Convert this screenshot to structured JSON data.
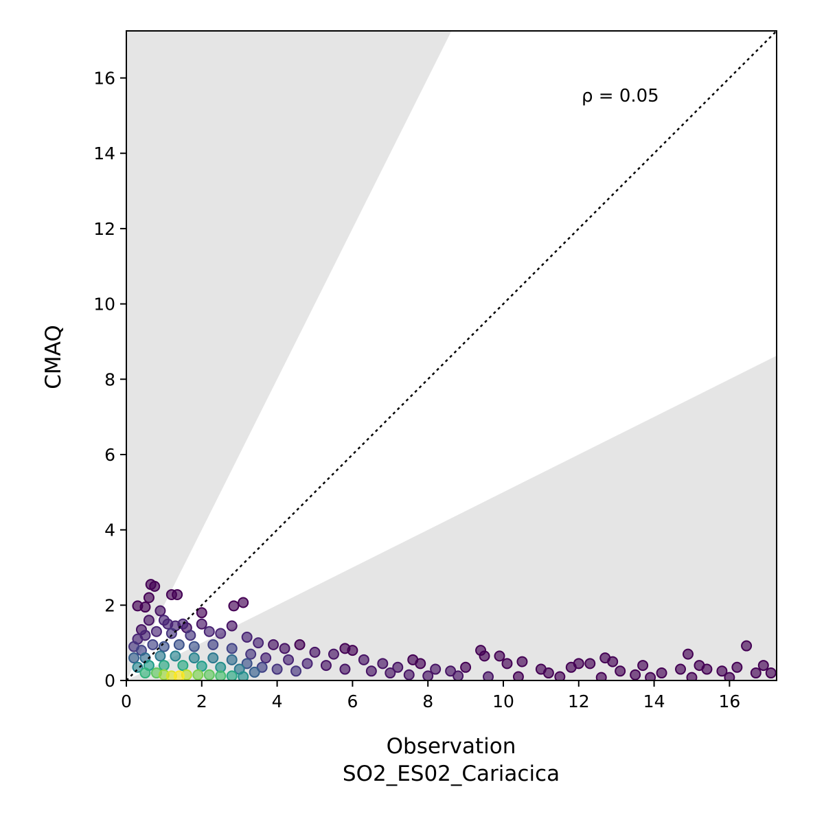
{
  "chart_data": {
    "type": "scatter",
    "xlabel": "Observation",
    "xlabel_sub": "SO2_ES02_Cariacica",
    "ylabel": "CMAQ",
    "xlim": [
      0,
      17.25
    ],
    "ylim": [
      0,
      17.25
    ],
    "xticks": [
      0,
      2,
      4,
      6,
      8,
      10,
      12,
      14,
      16
    ],
    "yticks": [
      0,
      2,
      4,
      6,
      8,
      10,
      12,
      14,
      16
    ],
    "annotation": "ρ = 0.05",
    "reference_line": "1:1",
    "shaded_band": "outside factor-of-2 of 1:1",
    "grid": false,
    "legend": "none",
    "colormap": [
      "#440154",
      "#482878",
      "#3e4989",
      "#31688e",
      "#26828e",
      "#1f9e89",
      "#35b779",
      "#6ece58",
      "#b5de2b",
      "#fde725"
    ],
    "points": [
      {
        "x": 0.65,
        "y": 2.55,
        "d": 0.0
      },
      {
        "x": 0.75,
        "y": 2.5,
        "d": 0.0
      },
      {
        "x": 1.2,
        "y": 2.28,
        "d": 0.0
      },
      {
        "x": 1.35,
        "y": 2.28,
        "d": 0.0
      },
      {
        "x": 0.3,
        "y": 1.98,
        "d": 0.0
      },
      {
        "x": 0.5,
        "y": 1.95,
        "d": 0.0
      },
      {
        "x": 0.6,
        "y": 2.2,
        "d": 0.0
      },
      {
        "x": 0.9,
        "y": 1.85,
        "d": 0.05
      },
      {
        "x": 1.0,
        "y": 1.6,
        "d": 0.1
      },
      {
        "x": 1.1,
        "y": 1.5,
        "d": 0.1
      },
      {
        "x": 1.3,
        "y": 1.45,
        "d": 0.1
      },
      {
        "x": 1.5,
        "y": 1.5,
        "d": 0.1
      },
      {
        "x": 1.6,
        "y": 1.4,
        "d": 0.05
      },
      {
        "x": 2.0,
        "y": 1.8,
        "d": 0.0
      },
      {
        "x": 2.0,
        "y": 1.5,
        "d": 0.05
      },
      {
        "x": 2.85,
        "y": 1.98,
        "d": 0.0
      },
      {
        "x": 3.1,
        "y": 2.07,
        "d": 0.0
      },
      {
        "x": 2.8,
        "y": 1.45,
        "d": 0.05
      },
      {
        "x": 0.4,
        "y": 1.35,
        "d": 0.05
      },
      {
        "x": 0.6,
        "y": 1.6,
        "d": 0.05
      },
      {
        "x": 0.3,
        "y": 1.1,
        "d": 0.1
      },
      {
        "x": 0.5,
        "y": 1.2,
        "d": 0.1
      },
      {
        "x": 0.8,
        "y": 1.3,
        "d": 0.1
      },
      {
        "x": 1.2,
        "y": 1.25,
        "d": 0.15
      },
      {
        "x": 1.7,
        "y": 1.2,
        "d": 0.15
      },
      {
        "x": 2.2,
        "y": 1.3,
        "d": 0.1
      },
      {
        "x": 2.5,
        "y": 1.25,
        "d": 0.1
      },
      {
        "x": 3.2,
        "y": 1.15,
        "d": 0.1
      },
      {
        "x": 3.5,
        "y": 1.0,
        "d": 0.1
      },
      {
        "x": 3.9,
        "y": 0.95,
        "d": 0.05
      },
      {
        "x": 4.2,
        "y": 0.85,
        "d": 0.05
      },
      {
        "x": 4.6,
        "y": 0.95,
        "d": 0.0
      },
      {
        "x": 5.0,
        "y": 0.75,
        "d": 0.05
      },
      {
        "x": 5.5,
        "y": 0.7,
        "d": 0.05
      },
      {
        "x": 5.8,
        "y": 0.85,
        "d": 0.0
      },
      {
        "x": 6.0,
        "y": 0.8,
        "d": 0.0
      },
      {
        "x": 6.3,
        "y": 0.55,
        "d": 0.05
      },
      {
        "x": 6.8,
        "y": 0.45,
        "d": 0.05
      },
      {
        "x": 7.2,
        "y": 0.35,
        "d": 0.05
      },
      {
        "x": 7.6,
        "y": 0.55,
        "d": 0.0
      },
      {
        "x": 7.8,
        "y": 0.45,
        "d": 0.0
      },
      {
        "x": 8.2,
        "y": 0.3,
        "d": 0.05
      },
      {
        "x": 8.6,
        "y": 0.25,
        "d": 0.05
      },
      {
        "x": 9.0,
        "y": 0.35,
        "d": 0.0
      },
      {
        "x": 9.4,
        "y": 0.8,
        "d": 0.0
      },
      {
        "x": 9.5,
        "y": 0.65,
        "d": 0.0
      },
      {
        "x": 9.9,
        "y": 0.65,
        "d": 0.0
      },
      {
        "x": 10.1,
        "y": 0.45,
        "d": 0.0
      },
      {
        "x": 10.5,
        "y": 0.5,
        "d": 0.0
      },
      {
        "x": 11.0,
        "y": 0.3,
        "d": 0.0
      },
      {
        "x": 11.2,
        "y": 0.2,
        "d": 0.0
      },
      {
        "x": 11.8,
        "y": 0.35,
        "d": 0.0
      },
      {
        "x": 12.0,
        "y": 0.45,
        "d": 0.0
      },
      {
        "x": 12.3,
        "y": 0.45,
        "d": 0.0
      },
      {
        "x": 12.7,
        "y": 0.6,
        "d": 0.0
      },
      {
        "x": 12.9,
        "y": 0.5,
        "d": 0.0
      },
      {
        "x": 13.1,
        "y": 0.25,
        "d": 0.0
      },
      {
        "x": 13.5,
        "y": 0.15,
        "d": 0.0
      },
      {
        "x": 13.7,
        "y": 0.4,
        "d": 0.0
      },
      {
        "x": 14.2,
        "y": 0.2,
        "d": 0.0
      },
      {
        "x": 14.7,
        "y": 0.3,
        "d": 0.0
      },
      {
        "x": 14.9,
        "y": 0.7,
        "d": 0.0
      },
      {
        "x": 15.2,
        "y": 0.4,
        "d": 0.0
      },
      {
        "x": 15.4,
        "y": 0.3,
        "d": 0.0
      },
      {
        "x": 15.8,
        "y": 0.25,
        "d": 0.0
      },
      {
        "x": 16.2,
        "y": 0.35,
        "d": 0.0
      },
      {
        "x": 16.45,
        "y": 0.92,
        "d": 0.0
      },
      {
        "x": 16.7,
        "y": 0.2,
        "d": 0.0
      },
      {
        "x": 16.9,
        "y": 0.4,
        "d": 0.0
      },
      {
        "x": 17.1,
        "y": 0.2,
        "d": 0.0
      },
      {
        "x": 0.2,
        "y": 0.9,
        "d": 0.15
      },
      {
        "x": 0.4,
        "y": 0.8,
        "d": 0.2
      },
      {
        "x": 0.7,
        "y": 0.95,
        "d": 0.2
      },
      {
        "x": 1.0,
        "y": 0.9,
        "d": 0.25
      },
      {
        "x": 1.4,
        "y": 0.95,
        "d": 0.25
      },
      {
        "x": 1.8,
        "y": 0.9,
        "d": 0.25
      },
      {
        "x": 2.3,
        "y": 0.95,
        "d": 0.2
      },
      {
        "x": 2.8,
        "y": 0.85,
        "d": 0.2
      },
      {
        "x": 3.3,
        "y": 0.7,
        "d": 0.15
      },
      {
        "x": 3.7,
        "y": 0.6,
        "d": 0.1
      },
      {
        "x": 4.3,
        "y": 0.55,
        "d": 0.1
      },
      {
        "x": 4.8,
        "y": 0.45,
        "d": 0.1
      },
      {
        "x": 5.3,
        "y": 0.4,
        "d": 0.05
      },
      {
        "x": 5.8,
        "y": 0.3,
        "d": 0.05
      },
      {
        "x": 6.5,
        "y": 0.25,
        "d": 0.05
      },
      {
        "x": 7.0,
        "y": 0.2,
        "d": 0.05
      },
      {
        "x": 7.5,
        "y": 0.15,
        "d": 0.05
      },
      {
        "x": 8.0,
        "y": 0.12,
        "d": 0.05
      },
      {
        "x": 8.8,
        "y": 0.12,
        "d": 0.05
      },
      {
        "x": 9.6,
        "y": 0.1,
        "d": 0.05
      },
      {
        "x": 10.4,
        "y": 0.1,
        "d": 0.0
      },
      {
        "x": 11.5,
        "y": 0.1,
        "d": 0.0
      },
      {
        "x": 12.6,
        "y": 0.08,
        "d": 0.0
      },
      {
        "x": 13.9,
        "y": 0.08,
        "d": 0.0
      },
      {
        "x": 15.0,
        "y": 0.08,
        "d": 0.0
      },
      {
        "x": 16.0,
        "y": 0.08,
        "d": 0.0
      },
      {
        "x": 0.2,
        "y": 0.6,
        "d": 0.3
      },
      {
        "x": 0.5,
        "y": 0.6,
        "d": 0.35
      },
      {
        "x": 0.9,
        "y": 0.65,
        "d": 0.4
      },
      {
        "x": 1.3,
        "y": 0.65,
        "d": 0.45
      },
      {
        "x": 1.8,
        "y": 0.6,
        "d": 0.45
      },
      {
        "x": 2.3,
        "y": 0.6,
        "d": 0.4
      },
      {
        "x": 2.8,
        "y": 0.55,
        "d": 0.35
      },
      {
        "x": 3.2,
        "y": 0.45,
        "d": 0.25
      },
      {
        "x": 3.6,
        "y": 0.35,
        "d": 0.2
      },
      {
        "x": 4.0,
        "y": 0.3,
        "d": 0.15
      },
      {
        "x": 4.5,
        "y": 0.25,
        "d": 0.15
      },
      {
        "x": 0.3,
        "y": 0.35,
        "d": 0.45
      },
      {
        "x": 0.6,
        "y": 0.4,
        "d": 0.55
      },
      {
        "x": 1.0,
        "y": 0.4,
        "d": 0.6
      },
      {
        "x": 1.5,
        "y": 0.4,
        "d": 0.6
      },
      {
        "x": 2.0,
        "y": 0.38,
        "d": 0.55
      },
      {
        "x": 2.5,
        "y": 0.35,
        "d": 0.5
      },
      {
        "x": 3.0,
        "y": 0.3,
        "d": 0.4
      },
      {
        "x": 3.4,
        "y": 0.22,
        "d": 0.3
      },
      {
        "x": 0.5,
        "y": 0.2,
        "d": 0.65
      },
      {
        "x": 0.8,
        "y": 0.2,
        "d": 0.75
      },
      {
        "x": 1.0,
        "y": 0.15,
        "d": 0.85
      },
      {
        "x": 1.2,
        "y": 0.12,
        "d": 0.95
      },
      {
        "x": 1.4,
        "y": 0.12,
        "d": 1.0
      },
      {
        "x": 1.6,
        "y": 0.15,
        "d": 0.9
      },
      {
        "x": 1.9,
        "y": 0.15,
        "d": 0.8
      },
      {
        "x": 2.2,
        "y": 0.15,
        "d": 0.75
      },
      {
        "x": 2.5,
        "y": 0.12,
        "d": 0.7
      },
      {
        "x": 2.8,
        "y": 0.12,
        "d": 0.6
      },
      {
        "x": 3.1,
        "y": 0.1,
        "d": 0.5
      }
    ]
  }
}
